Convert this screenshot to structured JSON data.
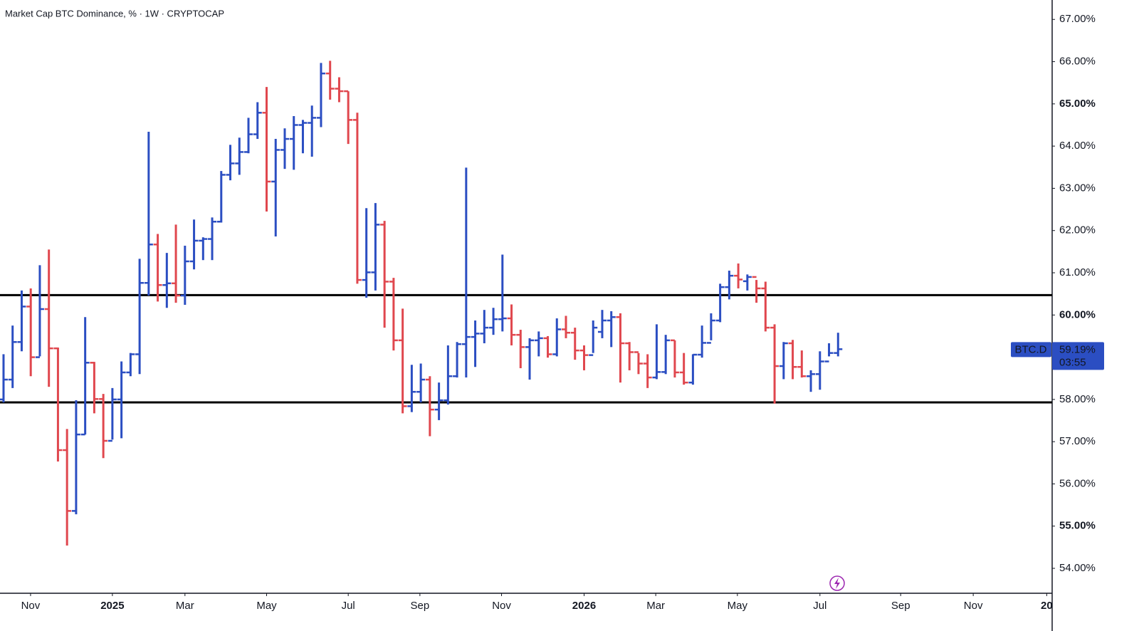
{
  "chart_data": {
    "type": "ohlc",
    "title": "Market Cap BTC Dominance, % · 1W · CRYPTOCAP",
    "series": [
      {
        "name": "BTC.D",
        "up_color": "#2b4ec2",
        "down_color": "#e0474e",
        "open": [
          58.0,
          58.47,
          59.36,
          60.2,
          59.0,
          60.14,
          59.21,
          56.8,
          55.36,
          57.17,
          58.87,
          58.01,
          57.02,
          58.0,
          58.64,
          59.07,
          60.76,
          61.67,
          60.71,
          60.75,
          60.46,
          61.27,
          61.76,
          61.8,
          62.21,
          63.32,
          63.59,
          63.86,
          64.28,
          64.79,
          63.16,
          63.91,
          64.17,
          64.5,
          64.55,
          64.67,
          65.72,
          65.36,
          65.3,
          64.62,
          60.83,
          61.01,
          62.14,
          60.79,
          59.4,
          57.84,
          58.18,
          58.47,
          57.76,
          57.98,
          58.55,
          59.31,
          59.48,
          59.56,
          59.7,
          59.9,
          59.92,
          59.53,
          59.24,
          59.4,
          59.45,
          59.07,
          59.66,
          59.58,
          59.16,
          59.05,
          59.6,
          59.87,
          59.95,
          59.33,
          59.12,
          58.85,
          58.52,
          58.65,
          59.4,
          58.64,
          58.4,
          59.06,
          59.34,
          59.87,
          60.66,
          60.93,
          60.8,
          60.9,
          60.63,
          59.7,
          58.79,
          59.33,
          58.77,
          58.55,
          58.6,
          58.9,
          59.1
        ],
        "high": [
          59.07,
          59.75,
          60.58,
          60.63,
          61.18,
          61.55,
          59.23,
          57.3,
          57.98,
          59.95,
          58.89,
          58.13,
          58.27,
          58.9,
          59.1,
          61.33,
          64.34,
          61.92,
          61.47,
          62.14,
          61.64,
          62.26,
          61.84,
          62.31,
          63.41,
          64.03,
          64.2,
          64.67,
          65.04,
          65.4,
          64.17,
          64.42,
          64.71,
          64.62,
          64.96,
          65.97,
          66.02,
          65.63,
          65.3,
          64.79,
          62.53,
          62.65,
          62.23,
          60.88,
          60.15,
          58.82,
          58.85,
          58.55,
          58.4,
          59.28,
          59.36,
          63.49,
          59.87,
          60.12,
          60.17,
          61.43,
          60.25,
          59.65,
          59.45,
          59.61,
          59.5,
          59.92,
          59.98,
          59.7,
          59.28,
          59.87,
          60.12,
          60.09,
          60.04,
          59.36,
          59.1,
          59.07,
          59.78,
          59.53,
          59.4,
          59.1,
          59.07,
          59.75,
          60.04,
          60.74,
          61.05,
          61.22,
          60.96,
          60.83,
          60.79,
          59.78,
          59.36,
          59.41,
          59.16,
          58.69,
          59.14,
          59.33,
          59.58
        ],
        "low": [
          57.93,
          58.27,
          59.14,
          58.55,
          59.02,
          58.3,
          56.53,
          54.54,
          55.28,
          57.17,
          57.67,
          56.61,
          57.05,
          57.08,
          58.55,
          58.6,
          60.46,
          60.32,
          60.17,
          60.29,
          60.24,
          61.08,
          61.3,
          61.3,
          62.19,
          63.19,
          63.32,
          63.83,
          64.17,
          62.45,
          61.86,
          63.46,
          63.44,
          63.83,
          63.75,
          64.45,
          65.1,
          65.04,
          64.05,
          60.74,
          60.41,
          60.58,
          59.7,
          59.16,
          57.67,
          57.7,
          57.93,
          57.13,
          57.51,
          57.88,
          58.52,
          58.52,
          58.77,
          59.33,
          59.53,
          59.61,
          59.28,
          58.74,
          58.47,
          59.02,
          58.99,
          59.02,
          59.45,
          58.94,
          58.69,
          59.1,
          59.45,
          59.24,
          58.4,
          58.69,
          58.6,
          58.27,
          58.48,
          58.6,
          58.52,
          58.35,
          58.35,
          58.99,
          59.4,
          59.83,
          60.37,
          60.63,
          60.58,
          60.29,
          59.61,
          57.9,
          58.48,
          58.48,
          58.52,
          58.18,
          58.23,
          59.02,
          59.02
        ],
        "close": [
          58.47,
          59.36,
          60.2,
          59.0,
          60.14,
          59.21,
          56.8,
          55.36,
          57.17,
          58.87,
          58.01,
          57.02,
          58.0,
          58.64,
          59.07,
          60.76,
          61.67,
          60.71,
          60.75,
          60.46,
          61.27,
          61.76,
          61.8,
          62.21,
          63.32,
          63.59,
          63.86,
          64.28,
          64.79,
          63.16,
          63.91,
          64.17,
          64.5,
          64.55,
          64.67,
          65.72,
          65.36,
          65.3,
          64.62,
          60.83,
          61.01,
          62.14,
          60.79,
          59.4,
          57.84,
          58.18,
          58.47,
          57.76,
          57.98,
          58.55,
          59.31,
          59.48,
          59.56,
          59.7,
          59.9,
          59.92,
          59.53,
          59.24,
          59.4,
          59.45,
          59.07,
          59.66,
          59.58,
          59.16,
          59.05,
          59.7,
          59.87,
          59.95,
          59.33,
          59.12,
          58.85,
          58.52,
          58.65,
          59.4,
          58.64,
          58.4,
          59.06,
          59.34,
          59.87,
          60.66,
          60.93,
          60.84,
          60.9,
          60.63,
          59.7,
          58.79,
          59.33,
          58.77,
          58.55,
          58.6,
          58.9,
          59.1,
          59.19
        ]
      }
    ],
    "last_label": {
      "symbol": "BTC.D",
      "price": "59.19%",
      "countdown": "03:55"
    },
    "levels": [
      60.47,
      57.93
    ],
    "xlim": [
      -0.39,
      115.6
    ],
    "xticks": [
      {
        "value": 2.98,
        "label": "Nov"
      },
      {
        "value": 12.0,
        "label": "2025"
      },
      {
        "value": 20.0,
        "label": "Mar"
      },
      {
        "value": 29.0,
        "label": "May"
      },
      {
        "value": 38.0,
        "label": "Jul"
      },
      {
        "value": 45.9,
        "label": "Sep"
      },
      {
        "value": 54.9,
        "label": "Nov"
      },
      {
        "value": 64.0,
        "label": "2026"
      },
      {
        "value": 71.9,
        "label": "Mar"
      },
      {
        "value": 80.9,
        "label": "May"
      },
      {
        "value": 90.0,
        "label": "Jul"
      },
      {
        "value": 98.9,
        "label": "Sep"
      },
      {
        "value": 106.9,
        "label": "Nov"
      },
      {
        "value": 115.0,
        "label": "20"
      }
    ],
    "ylim": [
      53.41,
      67.46
    ],
    "yticks": [
      {
        "value": 54,
        "label": "54.00%"
      },
      {
        "value": 55,
        "label": "55.00%"
      },
      {
        "value": 56,
        "label": "56.00%"
      },
      {
        "value": 57,
        "label": "57.00%"
      },
      {
        "value": 58,
        "label": "58.00%"
      },
      {
        "value": 59,
        "label": "59.00%"
      },
      {
        "value": 60,
        "label": "60.00%"
      },
      {
        "value": 61,
        "label": "61.00%"
      },
      {
        "value": 62,
        "label": "62.00%"
      },
      {
        "value": 63,
        "label": "63.00%"
      },
      {
        "value": 64,
        "label": "64.00%"
      },
      {
        "value": 65,
        "label": "65.00%"
      },
      {
        "value": 66,
        "label": "66.00%"
      },
      {
        "value": 67,
        "label": "67.00%"
      }
    ]
  }
}
